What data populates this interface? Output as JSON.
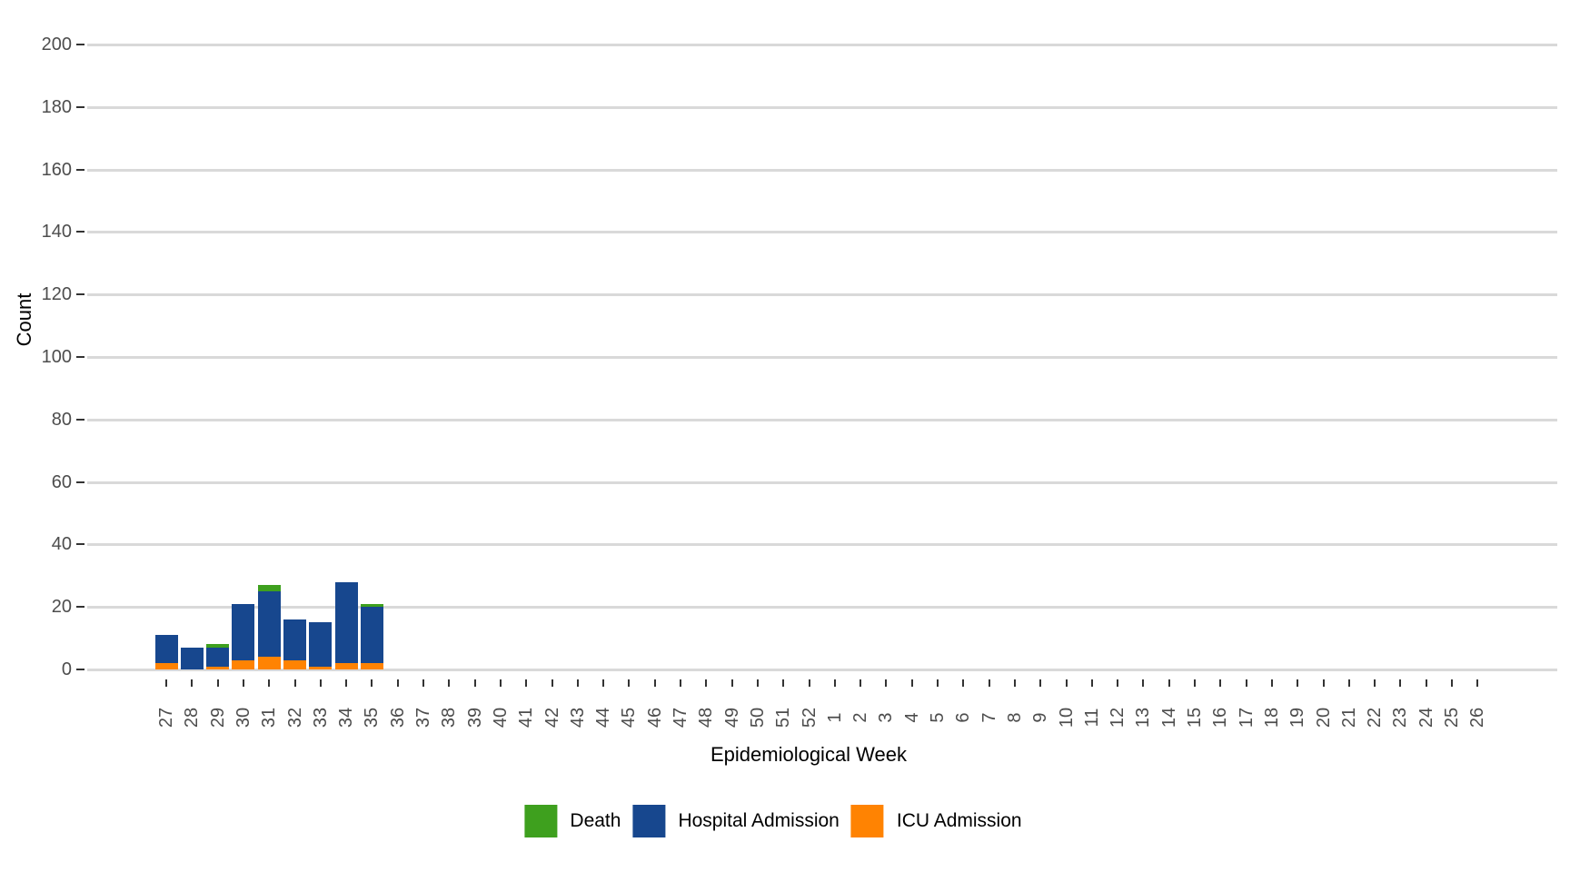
{
  "chart_data": {
    "type": "bar",
    "stacked": true,
    "title": "",
    "xlabel": "Epidemiological Week",
    "ylabel": "Count",
    "ylim": [
      0,
      200
    ],
    "ytick_step": 20,
    "yticks": [
      0,
      20,
      40,
      60,
      80,
      100,
      120,
      140,
      160,
      180,
      200
    ],
    "grid": {
      "horizontal": true,
      "vertical": false,
      "color": "#D9D9D9"
    },
    "legend_position": "bottom",
    "categories": [
      "27",
      "28",
      "29",
      "30",
      "31",
      "32",
      "33",
      "34",
      "35",
      "36",
      "37",
      "38",
      "39",
      "40",
      "41",
      "42",
      "43",
      "44",
      "45",
      "46",
      "47",
      "48",
      "49",
      "50",
      "51",
      "52",
      "1",
      "2",
      "3",
      "4",
      "5",
      "6",
      "7",
      "8",
      "9",
      "10",
      "11",
      "12",
      "13",
      "14",
      "15",
      "16",
      "17",
      "18",
      "19",
      "20",
      "21",
      "22",
      "23",
      "24",
      "25",
      "26"
    ],
    "series": [
      {
        "name": "ICU Admission",
        "color": "#FF8302",
        "stack_order": 1,
        "values": [
          2,
          0,
          1,
          3,
          4,
          3,
          1,
          2,
          2,
          0,
          0,
          0,
          0,
          0,
          0,
          0,
          0,
          0,
          0,
          0,
          0,
          0,
          0,
          0,
          0,
          0,
          0,
          0,
          0,
          0,
          0,
          0,
          0,
          0,
          0,
          0,
          0,
          0,
          0,
          0,
          0,
          0,
          0,
          0,
          0,
          0,
          0,
          0,
          0,
          0,
          0,
          0
        ]
      },
      {
        "name": "Hospital Admission",
        "color": "#17478E",
        "stack_order": 2,
        "values": [
          9,
          7,
          6,
          18,
          21,
          13,
          14,
          26,
          18,
          0,
          0,
          0,
          0,
          0,
          0,
          0,
          0,
          0,
          0,
          0,
          0,
          0,
          0,
          0,
          0,
          0,
          0,
          0,
          0,
          0,
          0,
          0,
          0,
          0,
          0,
          0,
          0,
          0,
          0,
          0,
          0,
          0,
          0,
          0,
          0,
          0,
          0,
          0,
          0,
          0,
          0,
          0
        ]
      },
      {
        "name": "Death",
        "color": "#3EA01E",
        "stack_order": 3,
        "values": [
          0,
          0,
          1,
          0,
          2,
          0,
          0,
          0,
          1,
          0,
          0,
          0,
          0,
          0,
          0,
          0,
          0,
          0,
          0,
          0,
          0,
          0,
          0,
          0,
          0,
          0,
          0,
          0,
          0,
          0,
          0,
          0,
          0,
          0,
          0,
          0,
          0,
          0,
          0,
          0,
          0,
          0,
          0,
          0,
          0,
          0,
          0,
          0,
          0,
          0,
          0,
          0
        ]
      }
    ],
    "legend_items": [
      {
        "label": "Death",
        "color": "#3EA01E"
      },
      {
        "label": "Hospital Admission",
        "color": "#17478E"
      },
      {
        "label": "ICU Admission",
        "color": "#FF8302"
      }
    ]
  }
}
